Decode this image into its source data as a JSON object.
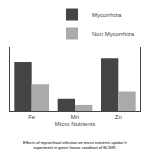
{
  "chart_data": {
    "type": "bar",
    "categories": [
      "Fe",
      "Mn",
      "Zn"
    ],
    "series": [
      {
        "name": "Mycorrhiza",
        "color": "#444444",
        "values": [
          88,
          22,
          95
        ]
      },
      {
        "name": "Non Mycorrhiza",
        "color": "#aaaaaa",
        "values": [
          48,
          11,
          35
        ]
      }
    ],
    "xlabel": "Micro Nutrients",
    "ylim": [
      0,
      115
    ],
    "tick_labels": "x",
    "grid": false,
    "legend": "upper right",
    "annotations": [
      "Effects of mycorrhizal infection on micro nutrients uptake fr\nexperiment in green house condition of BCSIR."
    ]
  }
}
